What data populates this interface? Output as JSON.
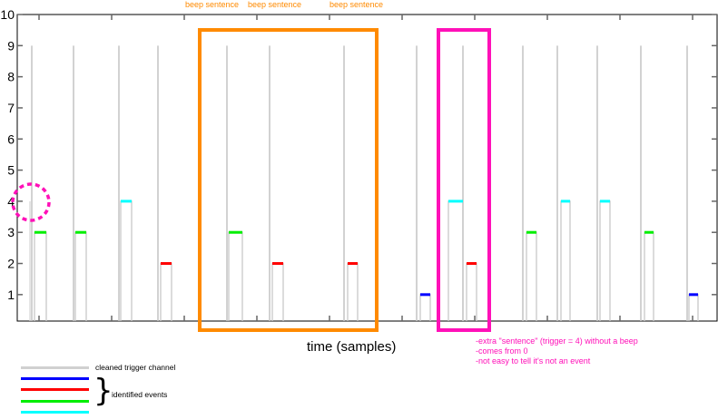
{
  "chart_data": {
    "type": "line",
    "title": "",
    "xlabel": "time (samples)",
    "ylabel": "",
    "xlim": [
      0,
      771
    ],
    "ylim": [
      0.15,
      10
    ],
    "yticks": [
      1,
      2,
      3,
      4,
      5,
      6,
      7,
      8,
      9,
      10
    ],
    "xticks": [
      24,
      104,
      184,
      264,
      344,
      424,
      504,
      584,
      664,
      744
    ],
    "series": [
      {
        "name": "cleaned trigger channel",
        "color": "#c4c4c4",
        "spikes": [
          {
            "x": 16,
            "y": 9
          },
          {
            "x": 62,
            "y": 9
          },
          {
            "x": 112,
            "y": 9
          },
          {
            "x": 155,
            "y": 9
          },
          {
            "x": 231,
            "y": 9
          },
          {
            "x": 278,
            "y": 9
          },
          {
            "x": 360,
            "y": 9
          },
          {
            "x": 440,
            "y": 9
          },
          {
            "x": 491,
            "y": 9
          },
          {
            "x": 557,
            "y": 9
          },
          {
            "x": 595,
            "y": 9
          },
          {
            "x": 639,
            "y": 9
          },
          {
            "x": 687,
            "y": 9
          },
          {
            "x": 738,
            "y": 9
          }
        ],
        "extra_step": {
          "x": 14,
          "y": 4
        }
      },
      {
        "name": "identified events",
        "events": [
          {
            "start": 19,
            "end": 32,
            "value": 3,
            "color": "#00ee00"
          },
          {
            "start": 64,
            "end": 76,
            "value": 3,
            "color": "#00ee00"
          },
          {
            "start": 114,
            "end": 126,
            "value": 4,
            "color": "#00ffff"
          },
          {
            "start": 158,
            "end": 170,
            "value": 2,
            "color": "#ff0000"
          },
          {
            "start": 233,
            "end": 248,
            "value": 3,
            "color": "#00ee00"
          },
          {
            "start": 281,
            "end": 293,
            "value": 2,
            "color": "#ff0000"
          },
          {
            "start": 364,
            "end": 375,
            "value": 2,
            "color": "#ff0000"
          },
          {
            "start": 444,
            "end": 455,
            "value": 1,
            "color": "#0000ff"
          },
          {
            "start": 475,
            "end": 491,
            "value": 4,
            "color": "#00ffff"
          },
          {
            "start": 495,
            "end": 506,
            "value": 2,
            "color": "#ff0000"
          },
          {
            "start": 561,
            "end": 572,
            "value": 3,
            "color": "#00ee00"
          },
          {
            "start": 599,
            "end": 609,
            "value": 4,
            "color": "#00ffff"
          },
          {
            "start": 642,
            "end": 653,
            "value": 4,
            "color": "#00ffff"
          },
          {
            "start": 691,
            "end": 701,
            "value": 3,
            "color": "#00ee00"
          },
          {
            "start": 740,
            "end": 750,
            "value": 1,
            "color": "#0000ff"
          }
        ]
      }
    ],
    "annotations": {
      "beep_labels": [
        "beep sentence",
        "beep sentence",
        "beep sentence"
      ],
      "notes": [
        "-extra \"sentence\" (trigger = 4) without a beep",
        "-comes from 0",
        "-not easy to tell it's not an event"
      ],
      "orange_box_color": "#ff8a00",
      "pink_color": "#ff10b8"
    },
    "legend": {
      "trace_label": "cleaned trigger channel",
      "events_label": "identified events",
      "colors": [
        "#c4c4c4",
        "#0000ff",
        "#ff0000",
        "#00ee00",
        "#00ffff"
      ]
    }
  }
}
